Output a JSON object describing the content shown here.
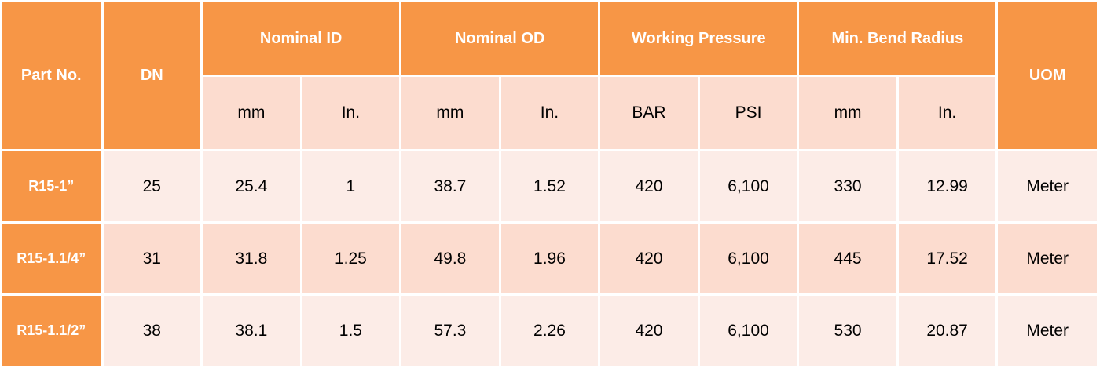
{
  "colors": {
    "header_orange": "#f79646",
    "subheader_peach": "#fcdccf",
    "row_light": "#fcece7",
    "row_dark": "#fcdccf"
  },
  "headers": {
    "part_no": "Part No.",
    "dn": "DN",
    "nominal_id": "Nominal ID",
    "nominal_od": "Nominal OD",
    "working_pressure": "Working Pressure",
    "min_bend_radius": "Min. Bend Radius",
    "uom": "UOM"
  },
  "subheaders": {
    "id_mm": "mm",
    "id_in": "In.",
    "od_mm": "mm",
    "od_in": "In.",
    "wp_bar": "BAR",
    "wp_psi": "PSI",
    "bend_mm": "mm",
    "bend_in": "In."
  },
  "rows": [
    {
      "part_no": "R15-1”",
      "dn": "25",
      "id_mm": "25.4",
      "id_in": "1",
      "od_mm": "38.7",
      "od_in": "1.52",
      "wp_bar": "420",
      "wp_psi": "6,100",
      "bend_mm": "330",
      "bend_in": "12.99",
      "uom": "Meter"
    },
    {
      "part_no": "R15-1.1/4”",
      "dn": "31",
      "id_mm": "31.8",
      "id_in": "1.25",
      "od_mm": "49.8",
      "od_in": "1.96",
      "wp_bar": "420",
      "wp_psi": "6,100",
      "bend_mm": "445",
      "bend_in": "17.52",
      "uom": "Meter"
    },
    {
      "part_no": "R15-1.1/2”",
      "dn": "38",
      "id_mm": "38.1",
      "id_in": "1.5",
      "od_mm": "57.3",
      "od_in": "2.26",
      "wp_bar": "420",
      "wp_psi": "6,100",
      "bend_mm": "530",
      "bend_in": "20.87",
      "uom": "Meter"
    }
  ]
}
